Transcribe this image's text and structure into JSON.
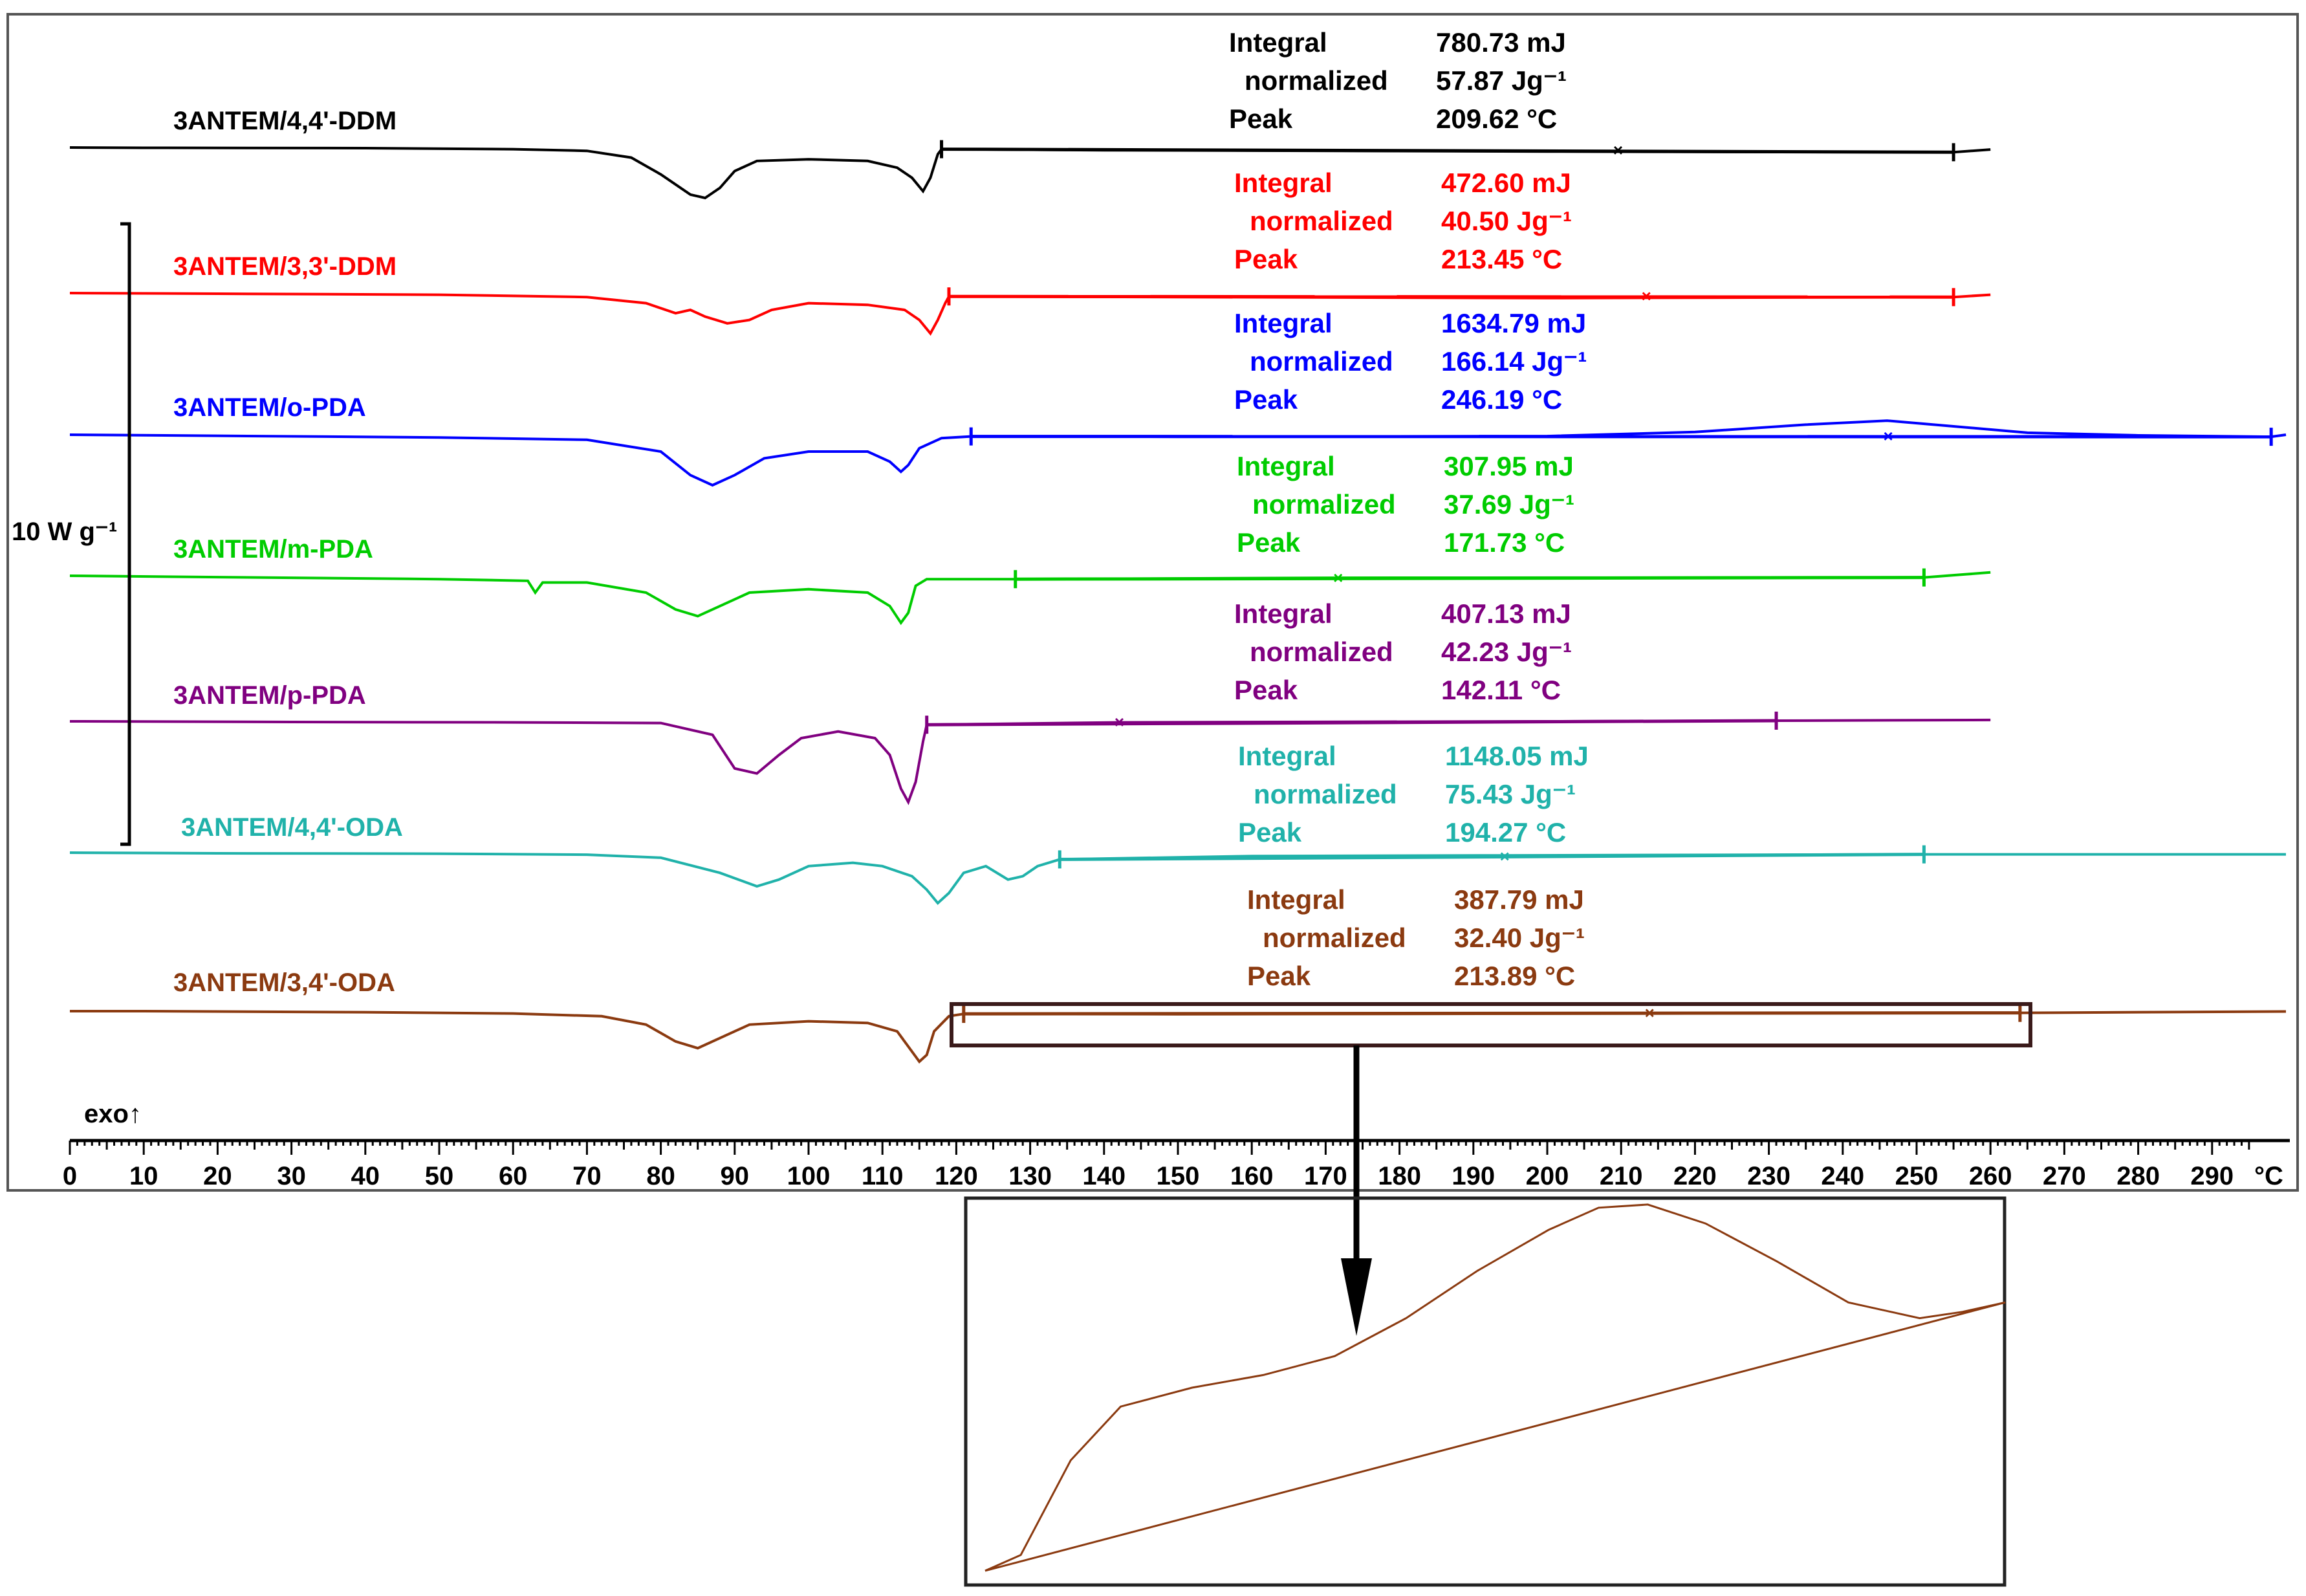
{
  "chart_data": {
    "type": "line",
    "title": "",
    "xlabel": "°C",
    "ylabel": "",
    "xlim": [
      0,
      300
    ],
    "x_ticks": [
      "0",
      "10",
      "20",
      "30",
      "40",
      "50",
      "60",
      "70",
      "80",
      "90",
      "100",
      "110",
      "120",
      "130",
      "140",
      "150",
      "160",
      "170",
      "180",
      "190",
      "200",
      "210",
      "220",
      "230",
      "240",
      "250",
      "260",
      "270",
      "280",
      "290"
    ],
    "exo_label": "exo↑",
    "scale_bar_label": "10 W g⁻¹",
    "integral_label": "Integral",
    "normalized_label": "normalized",
    "peak_label": "Peak",
    "series": [
      {
        "name": "3ANTEM/4,4'-DDM",
        "color": "#000000",
        "integral": "780.73 mJ",
        "normalized": "57.87 Jg⁻¹",
        "peak": "209.62 °C",
        "peak_c": 209.62,
        "integration_range_c": [
          118,
          255
        ],
        "points": [
          [
            0,
            0
          ],
          [
            10,
            0.1
          ],
          [
            40,
            0.2
          ],
          [
            60,
            0.5
          ],
          [
            70,
            1
          ],
          [
            76,
            3
          ],
          [
            80,
            8
          ],
          [
            84,
            14
          ],
          [
            86,
            15
          ],
          [
            88,
            12
          ],
          [
            90,
            7
          ],
          [
            93,
            4
          ],
          [
            100,
            3.5
          ],
          [
            108,
            4
          ],
          [
            112,
            6
          ],
          [
            114,
            9
          ],
          [
            115.5,
            13
          ],
          [
            116.5,
            9
          ],
          [
            117.5,
            2
          ],
          [
            118,
            0.5
          ],
          [
            140,
            0.8
          ],
          [
            200,
            1.2
          ],
          [
            220,
            1.3
          ],
          [
            255,
            1.4
          ],
          [
            260,
            0.6
          ]
        ]
      },
      {
        "name": "3ANTEM/3,3'-DDM",
        "color": "#ff0000",
        "integral": "472.60 mJ",
        "normalized": "40.50 Jg⁻¹",
        "peak": "213.45 °C",
        "peak_c": 213.45,
        "integration_range_c": [
          119,
          255
        ],
        "points": [
          [
            0,
            0
          ],
          [
            20,
            0.2
          ],
          [
            50,
            0.5
          ],
          [
            70,
            1.2
          ],
          [
            78,
            3
          ],
          [
            82,
            6
          ],
          [
            84,
            5
          ],
          [
            86,
            7
          ],
          [
            89,
            9
          ],
          [
            92,
            8
          ],
          [
            95,
            5
          ],
          [
            100,
            3
          ],
          [
            108,
            3.5
          ],
          [
            113,
            5
          ],
          [
            115,
            8
          ],
          [
            116.5,
            12
          ],
          [
            117.5,
            8
          ],
          [
            118.5,
            3
          ],
          [
            119,
            1
          ],
          [
            150,
            1.2
          ],
          [
            200,
            1.5
          ],
          [
            255,
            1.2
          ],
          [
            260,
            0.5
          ]
        ]
      },
      {
        "name": "3ANTEM/o-PDA",
        "color": "#0000ff",
        "integral": "1634.79 mJ",
        "normalized": "166.14 Jg⁻¹",
        "peak": "246.19 °C",
        "peak_c": 246.19,
        "integration_range_c": [
          122,
          298
        ],
        "points": [
          [
            0,
            0
          ],
          [
            20,
            0.3
          ],
          [
            50,
            0.8
          ],
          [
            70,
            1.5
          ],
          [
            80,
            5
          ],
          [
            84,
            12
          ],
          [
            87,
            15
          ],
          [
            90,
            12
          ],
          [
            94,
            7
          ],
          [
            100,
            5
          ],
          [
            108,
            5
          ],
          [
            111,
            8
          ],
          [
            112.5,
            11
          ],
          [
            113.5,
            9
          ],
          [
            115,
            4
          ],
          [
            118,
            1
          ],
          [
            122,
            0.5
          ],
          [
            150,
            0.6
          ],
          [
            200,
            0.4
          ],
          [
            220,
            -0.8
          ],
          [
            235,
            -3
          ],
          [
            246,
            -4.2
          ],
          [
            255,
            -2.5
          ],
          [
            265,
            -0.6
          ],
          [
            280,
            0.2
          ],
          [
            298,
            0.6
          ],
          [
            300,
            0
          ]
        ]
      },
      {
        "name": "3ANTEM/m-PDA",
        "color": "#00cc00",
        "integral": "307.95 mJ",
        "normalized": "37.69 Jg⁻¹",
        "peak": "171.73 °C",
        "peak_c": 171.73,
        "integration_range_c": [
          128,
          251
        ],
        "points": [
          [
            0,
            0
          ],
          [
            20,
            0.4
          ],
          [
            50,
            1
          ],
          [
            62,
            1.5
          ],
          [
            63,
            5
          ],
          [
            64,
            2
          ],
          [
            70,
            2
          ],
          [
            78,
            5
          ],
          [
            82,
            10
          ],
          [
            85,
            12
          ],
          [
            88,
            9
          ],
          [
            92,
            5
          ],
          [
            100,
            4
          ],
          [
            108,
            5
          ],
          [
            111,
            9
          ],
          [
            112.5,
            14
          ],
          [
            113.5,
            11
          ],
          [
            114.5,
            3
          ],
          [
            116,
            1
          ],
          [
            128,
            1
          ],
          [
            171.73,
            0.6
          ],
          [
            251,
            0.5
          ],
          [
            260,
            -1
          ]
        ]
      },
      {
        "name": "3ANTEM/p-PDA",
        "color": "#800080",
        "integral": "407.13 mJ",
        "normalized": "42.23 Jg⁻¹",
        "peak": "142.11 °C",
        "peak_c": 142.11,
        "integration_range_c": [
          116,
          231
        ],
        "points": [
          [
            0,
            0
          ],
          [
            30,
            0.2
          ],
          [
            60,
            0.3
          ],
          [
            80,
            0.5
          ],
          [
            87,
            4
          ],
          [
            90,
            14
          ],
          [
            93,
            15.5
          ],
          [
            96,
            10
          ],
          [
            99,
            5
          ],
          [
            104,
            3
          ],
          [
            109,
            5
          ],
          [
            111,
            10
          ],
          [
            112.5,
            20
          ],
          [
            113.5,
            24
          ],
          [
            114.5,
            18
          ],
          [
            115.5,
            6
          ],
          [
            116,
            1
          ],
          [
            142,
            0.3
          ],
          [
            200,
            0
          ],
          [
            231,
            -0.2
          ],
          [
            260,
            -0.4
          ]
        ]
      },
      {
        "name": "3ANTEM/4,4'-ODA",
        "color": "#20b2aa",
        "integral": "1148.05 mJ",
        "normalized": "75.43 Jg⁻¹",
        "peak": "194.27 °C",
        "peak_c": 194.27,
        "integration_range_c": [
          134,
          251
        ],
        "points": [
          [
            0,
            0
          ],
          [
            20,
            0.2
          ],
          [
            50,
            0.3
          ],
          [
            70,
            0.6
          ],
          [
            80,
            1.5
          ],
          [
            88,
            6
          ],
          [
            93,
            10
          ],
          [
            96,
            8
          ],
          [
            100,
            4
          ],
          [
            106,
            3
          ],
          [
            110,
            4
          ],
          [
            114,
            7
          ],
          [
            116,
            11
          ],
          [
            117.5,
            15
          ],
          [
            119,
            12
          ],
          [
            121,
            6
          ],
          [
            124,
            4
          ],
          [
            127,
            8
          ],
          [
            129,
            7
          ],
          [
            131,
            4
          ],
          [
            134,
            2
          ],
          [
            160,
            1
          ],
          [
            194,
            0.8
          ],
          [
            251,
            0.5
          ],
          [
            300,
            0.5
          ]
        ]
      },
      {
        "name": "3ANTEM/3,4'-ODA",
        "color": "#8b3a10",
        "integral": "387.79 mJ",
        "normalized": "32.40 Jg⁻¹",
        "peak": "213.89 °C",
        "peak_c": 213.89,
        "integration_range_c": [
          121,
          264
        ],
        "points": [
          [
            0,
            0
          ],
          [
            10,
            0
          ],
          [
            40,
            0.3
          ],
          [
            60,
            0.7
          ],
          [
            72,
            1.5
          ],
          [
            78,
            4
          ],
          [
            82,
            9
          ],
          [
            85,
            11
          ],
          [
            88,
            8
          ],
          [
            92,
            4
          ],
          [
            100,
            3
          ],
          [
            108,
            3.5
          ],
          [
            112,
            6
          ],
          [
            114,
            12
          ],
          [
            115,
            15
          ],
          [
            116,
            13
          ],
          [
            117,
            6
          ],
          [
            119,
            1.5
          ],
          [
            121,
            0.8
          ],
          [
            150,
            0.9
          ],
          [
            213.89,
            0.7
          ],
          [
            264,
            0.5
          ],
          [
            300,
            0.1
          ]
        ]
      }
    ],
    "inset": {
      "series": "3ANTEM/3,4'-ODA",
      "range_c": [
        121,
        264
      ],
      "curve": [
        [
          121,
          0
        ],
        [
          126,
          0.05
        ],
        [
          133,
          0.35
        ],
        [
          140,
          0.52
        ],
        [
          150,
          0.58
        ],
        [
          160,
          0.62
        ],
        [
          170,
          0.68
        ],
        [
          180,
          0.8
        ],
        [
          190,
          0.95
        ],
        [
          200,
          1.08
        ],
        [
          207,
          1.15
        ],
        [
          213.89,
          1.16
        ],
        [
          222,
          1.1
        ],
        [
          232,
          0.98
        ],
        [
          242,
          0.85
        ],
        [
          252,
          0.8
        ],
        [
          258,
          0.82
        ],
        [
          264,
          0.85
        ]
      ],
      "baseline": [
        [
          121,
          0
        ],
        [
          264,
          0.85
        ]
      ]
    }
  }
}
